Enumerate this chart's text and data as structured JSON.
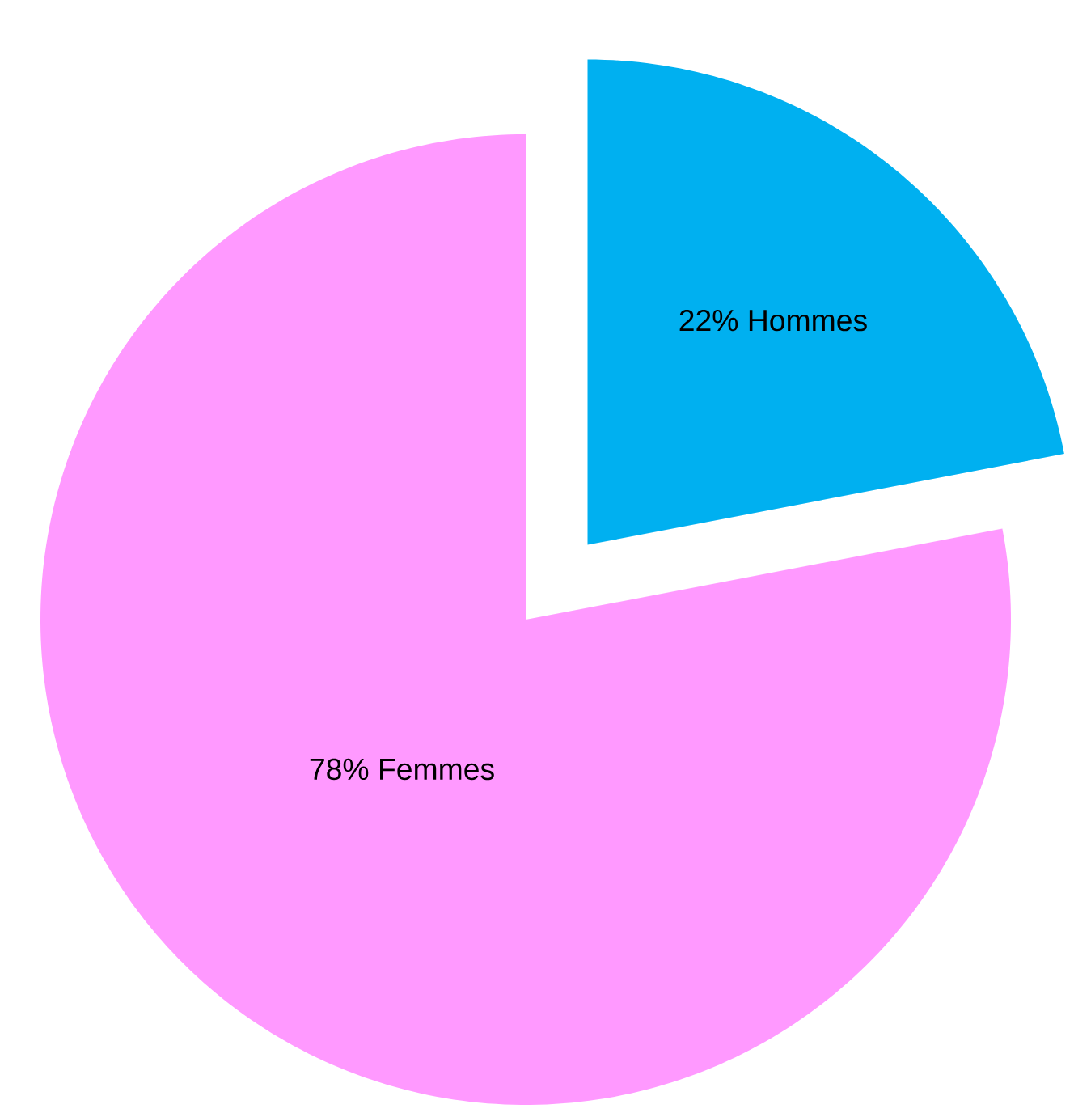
{
  "chart_data": {
    "type": "pie",
    "categories": [
      "Hommes",
      "Femmes"
    ],
    "values": [
      22,
      78
    ],
    "value_labels": [
      "22%",
      "78%"
    ],
    "colors": [
      "#00b0f0",
      "#ff99ff"
    ]
  }
}
